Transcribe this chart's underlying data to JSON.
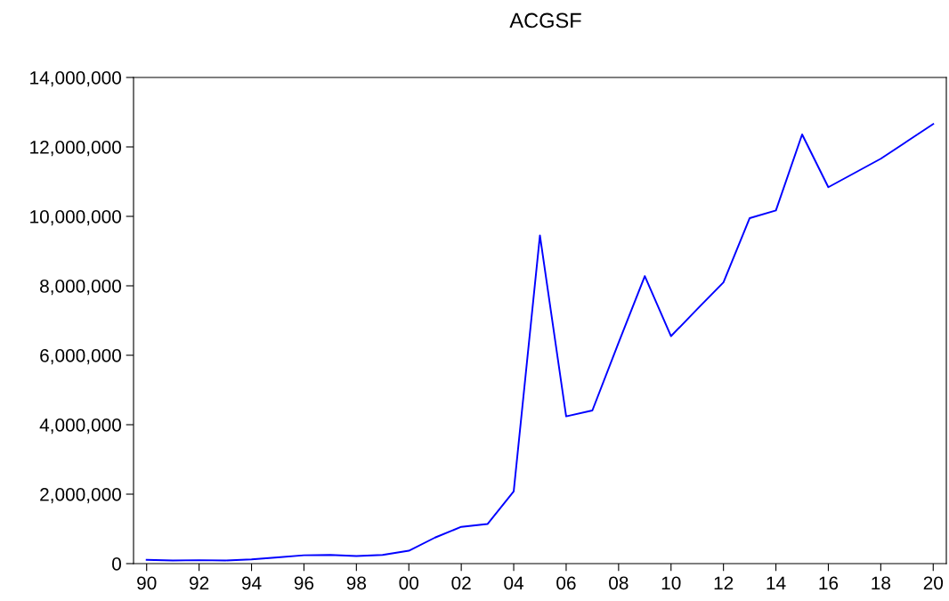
{
  "chart_data": {
    "type": "line",
    "title": "ACGSF",
    "x": [
      1990,
      1991,
      1992,
      1993,
      1994,
      1995,
      1996,
      1997,
      1998,
      1999,
      2000,
      2001,
      2002,
      2003,
      2004,
      2005,
      2006,
      2007,
      2008,
      2009,
      2010,
      2011,
      2012,
      2013,
      2014,
      2015,
      2016,
      2017,
      2018,
      2019,
      2020
    ],
    "series": [
      {
        "color": "#0000ff",
        "values": [
          110000,
          90000,
          100000,
          90000,
          120000,
          180000,
          240000,
          250000,
          220000,
          250000,
          370000,
          750000,
          1060000,
          1140000,
          2080000,
          9450000,
          4240000,
          4410000,
          6360000,
          8280000,
          6550000,
          7330000,
          8100000,
          9950000,
          10170000,
          12360000,
          10840000,
          11250000,
          11660000,
          12160000,
          12660000
        ]
      }
    ],
    "xlim": [
      1989.5,
      2020.5
    ],
    "xticks": [
      {
        "value": 1990,
        "label": "90"
      },
      {
        "value": 1992,
        "label": "92"
      },
      {
        "value": 1994,
        "label": "94"
      },
      {
        "value": 1996,
        "label": "96"
      },
      {
        "value": 1998,
        "label": "98"
      },
      {
        "value": 2000,
        "label": "00"
      },
      {
        "value": 2002,
        "label": "02"
      },
      {
        "value": 2004,
        "label": "04"
      },
      {
        "value": 2006,
        "label": "06"
      },
      {
        "value": 2008,
        "label": "08"
      },
      {
        "value": 2010,
        "label": "10"
      },
      {
        "value": 2012,
        "label": "12"
      },
      {
        "value": 2014,
        "label": "14"
      },
      {
        "value": 2016,
        "label": "16"
      },
      {
        "value": 2018,
        "label": "18"
      },
      {
        "value": 2020,
        "label": "20"
      }
    ],
    "ylim": [
      0,
      14000000
    ],
    "yticks": [
      {
        "value": 0,
        "label": "0"
      },
      {
        "value": 2000000,
        "label": "2,000,000"
      },
      {
        "value": 4000000,
        "label": "4,000,000"
      },
      {
        "value": 6000000,
        "label": "6,000,000"
      },
      {
        "value": 8000000,
        "label": "8,000,000"
      },
      {
        "value": 10000000,
        "label": "10,000,000"
      },
      {
        "value": 12000000,
        "label": "12,000,000"
      },
      {
        "value": 14000000,
        "label": "14,000,000"
      }
    ],
    "grid": false,
    "marker": "none",
    "line_style": "solid"
  }
}
